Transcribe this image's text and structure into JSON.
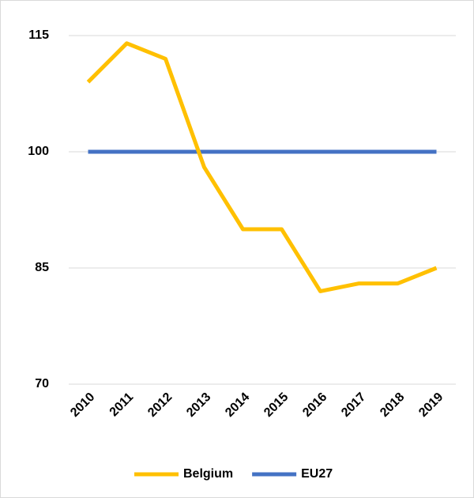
{
  "chart_data": {
    "type": "line",
    "categories": [
      "2010",
      "2011",
      "2012",
      "2013",
      "2014",
      "2015",
      "2016",
      "2017",
      "2018",
      "2019"
    ],
    "series": [
      {
        "name": "Belgium",
        "color": "#ffc000",
        "values": [
          109,
          114,
          112,
          98,
          90,
          90,
          82,
          83,
          83,
          85
        ]
      },
      {
        "name": "EU27",
        "color": "#4472c4",
        "values": [
          100,
          100,
          100,
          100,
          100,
          100,
          100,
          100,
          100,
          100
        ]
      }
    ],
    "ylim": [
      70,
      115
    ],
    "yticks": [
      70,
      85,
      100,
      115
    ],
    "grid": true,
    "legend": "bottom"
  }
}
